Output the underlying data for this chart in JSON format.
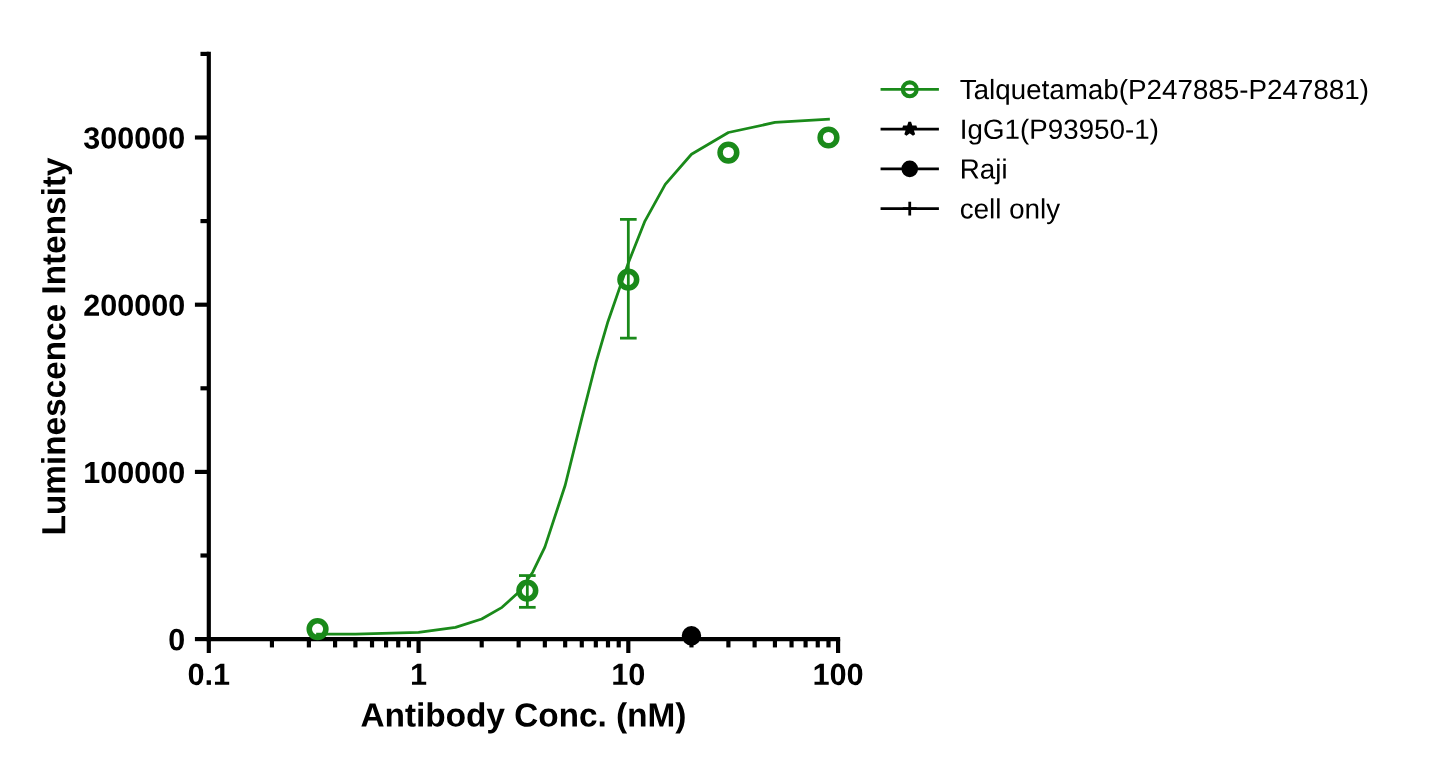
{
  "chart_data": {
    "type": "scatter",
    "xlabel": "Antibody Conc. (nM)",
    "ylabel": "Luminescence Intensity",
    "log": "x",
    "xlim": [
      0.1,
      100
    ],
    "xticks": [
      0.1,
      1,
      10,
      100
    ],
    "ylim": [
      0,
      350000
    ],
    "yticks": [
      0,
      100000,
      200000,
      300000
    ],
    "grid": false,
    "legend": "right",
    "series": [
      {
        "name": "Talquetamab(P247885-P247881)",
        "color": "#1a8a1a",
        "marker": "circle",
        "x": [
          0.33,
          3.3,
          10,
          30,
          90
        ],
        "values": [
          6000,
          29000,
          215000,
          291000,
          300000
        ],
        "errors": [
          null,
          [
            19000,
            38000
          ],
          [
            180000,
            251000
          ],
          null,
          null
        ]
      },
      {
        "name": "IgG1(P93950-1)",
        "color": "#000000",
        "marker": "star"
      },
      {
        "name": "Raji",
        "color": "#000000",
        "marker": "circle",
        "x": [
          20
        ],
        "values": [
          2000
        ]
      },
      {
        "name": "cell only",
        "color": "#000000",
        "marker": "cross"
      },
      {
        "type": "line",
        "color": "#1a8a1a",
        "x": [
          0.33,
          0.5,
          1,
          1.5,
          2,
          2.5,
          3,
          3.5,
          4,
          5,
          6,
          7,
          8,
          10,
          12,
          15,
          20,
          30,
          50,
          90
        ],
        "values": [
          3000,
          3000,
          4000,
          7000,
          12000,
          19000,
          28000,
          40000,
          55000,
          92000,
          132000,
          165000,
          190000,
          225000,
          250000,
          272000,
          290000,
          303000,
          309000,
          311000
        ]
      }
    ]
  }
}
